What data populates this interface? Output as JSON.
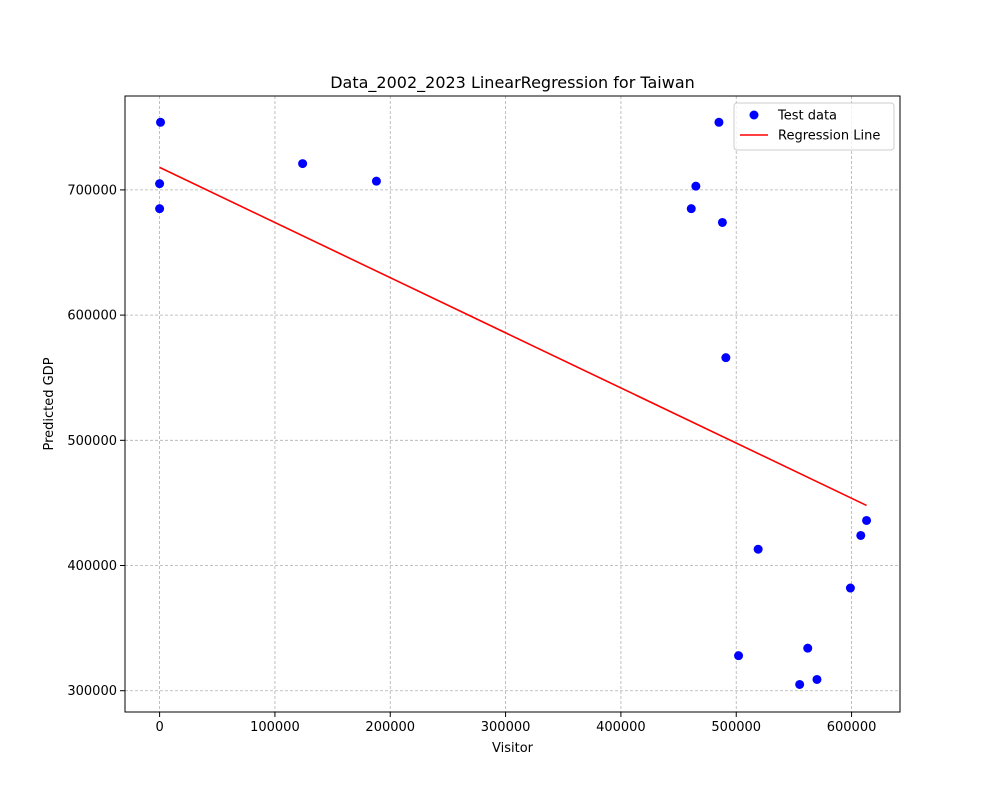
{
  "chart_data": {
    "type": "scatter",
    "title": "Data_2002_2023 LinearRegression for Taiwan",
    "xlabel": "Visitor",
    "ylabel": "Predicted GDP",
    "xlim": [
      -30000,
      642000
    ],
    "ylim": [
      283000,
      775000
    ],
    "xticks": [
      0,
      100000,
      200000,
      300000,
      400000,
      500000,
      600000
    ],
    "yticks": [
      300000,
      400000,
      500000,
      600000,
      700000
    ],
    "grid": true,
    "legend_position": "top-right",
    "series": [
      {
        "name": "Test data",
        "kind": "scatter",
        "color": "#0000ff",
        "points": [
          [
            800,
            754000
          ],
          [
            0,
            705000
          ],
          [
            0,
            685000
          ],
          [
            124000,
            721000
          ],
          [
            188000,
            707000
          ],
          [
            461000,
            685000
          ],
          [
            465000,
            703000
          ],
          [
            485000,
            754000
          ],
          [
            488000,
            674000
          ],
          [
            491000,
            566000
          ],
          [
            502000,
            328000
          ],
          [
            519000,
            413000
          ],
          [
            555000,
            305000
          ],
          [
            562000,
            334000
          ],
          [
            570000,
            309000
          ],
          [
            599000,
            382000
          ],
          [
            608000,
            424000
          ],
          [
            613000,
            436000
          ]
        ]
      },
      {
        "name": "Regression Line",
        "kind": "line",
        "color": "#ff0000",
        "points": [
          [
            0,
            718000
          ],
          [
            613000,
            448000
          ]
        ]
      }
    ]
  }
}
